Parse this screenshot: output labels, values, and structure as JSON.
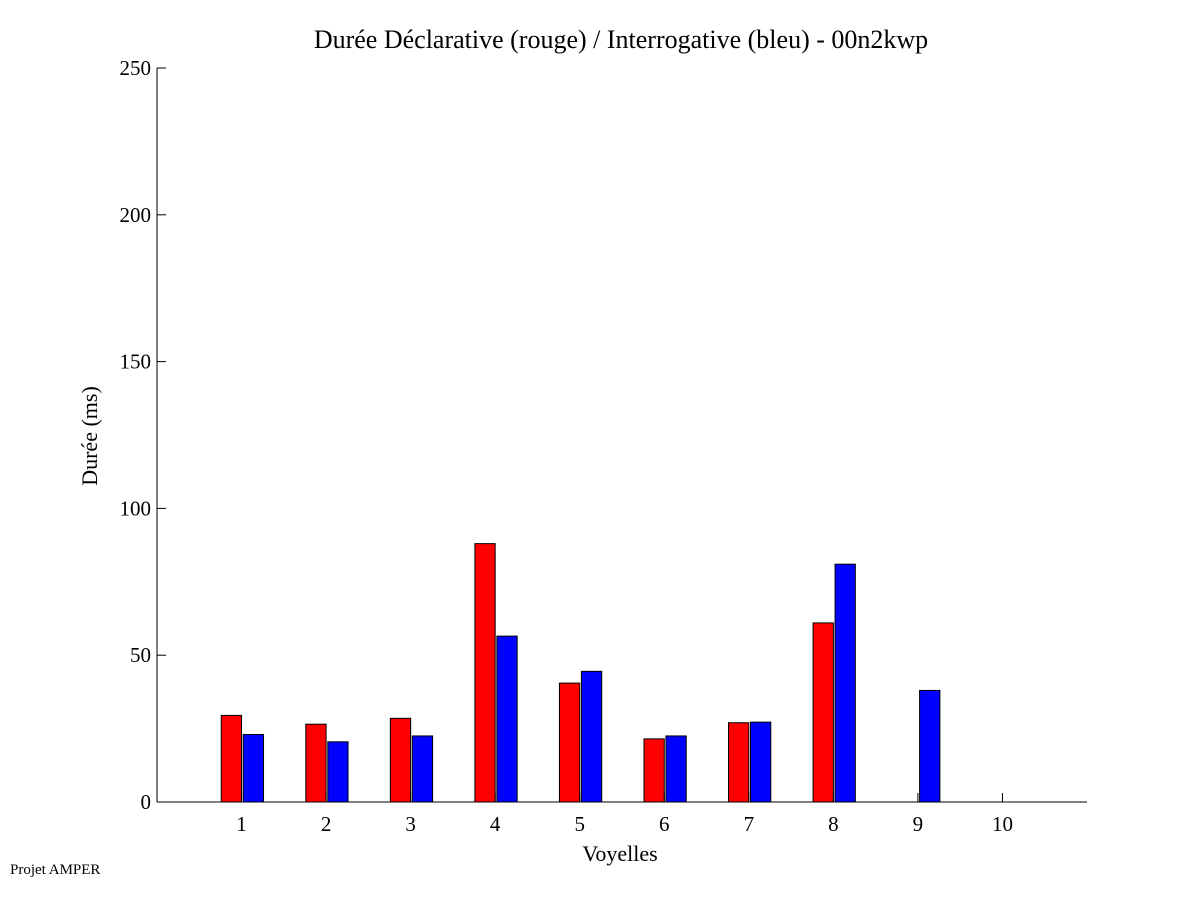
{
  "chart_data": {
    "type": "bar",
    "title": "Durée Déclarative (rouge) / Interrogative (bleu) - 00n2kwp",
    "xlabel": "Voyelles",
    "ylabel": "Durée (ms)",
    "ylim": [
      0,
      250
    ],
    "yticks": [
      0,
      50,
      100,
      150,
      200,
      250
    ],
    "xlim": [
      0,
      11
    ],
    "categories": [
      "1",
      "2",
      "3",
      "4",
      "5",
      "6",
      "7",
      "8",
      "9",
      "10"
    ],
    "series": [
      {
        "color": "#ff0000",
        "values": [
          29.5,
          26.5,
          28.5,
          88,
          40.5,
          21.5,
          27,
          61,
          null,
          null
        ]
      },
      {
        "color": "#0000ff",
        "values": [
          23,
          20.5,
          22.5,
          56.5,
          44.5,
          22.5,
          27.2,
          81,
          38,
          null
        ]
      }
    ],
    "grid": false,
    "legend": "none"
  },
  "footer": {
    "text": "Projet AMPER"
  }
}
